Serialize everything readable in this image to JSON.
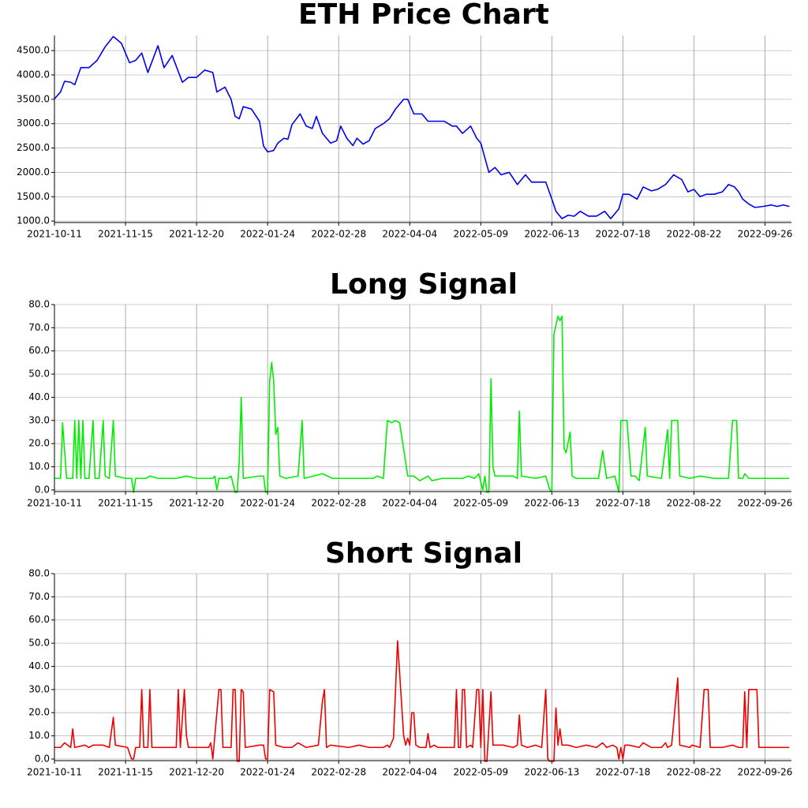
{
  "chart_data": [
    {
      "type": "line",
      "title": "ETH Price Chart",
      "color": "#0000ee",
      "grid": true,
      "xlim": [
        "2021-10-11",
        "2022-10-09"
      ],
      "xticks": [
        "2021-10-11",
        "2021-11-15",
        "2021-12-20",
        "2022-01-24",
        "2022-02-28",
        "2022-04-04",
        "2022-05-09",
        "2022-06-13",
        "2022-07-18",
        "2022-08-22",
        "2022-09-26"
      ],
      "ylim": [
        970,
        4810
      ],
      "yticks": [
        {
          "value": 1000,
          "label": "1000.0"
        },
        {
          "value": 1500,
          "label": "1500.0"
        },
        {
          "value": 2000,
          "label": "2000.0"
        },
        {
          "value": 2500,
          "label": "2500.0"
        },
        {
          "value": 3000,
          "label": "3000.0"
        },
        {
          "value": 3500,
          "label": "3500.0"
        },
        {
          "value": 4000,
          "label": "4000.0"
        },
        {
          "value": 4500,
          "label": "4500.0"
        }
      ],
      "x": [
        "2021-10-11",
        "2021-10-14",
        "2021-10-16",
        "2021-10-19",
        "2021-10-21",
        "2021-10-24",
        "2021-10-28",
        "2021-11-01",
        "2021-11-05",
        "2021-11-09",
        "2021-11-13",
        "2021-11-17",
        "2021-11-20",
        "2021-11-23",
        "2021-11-26",
        "2021-12-01",
        "2021-12-04",
        "2021-12-08",
        "2021-12-13",
        "2021-12-16",
        "2021-12-20",
        "2021-12-24",
        "2021-12-28",
        "2021-12-30",
        "2022-01-03",
        "2022-01-06",
        "2022-01-08",
        "2022-01-10",
        "2022-01-12",
        "2022-01-16",
        "2022-01-20",
        "2022-01-22",
        "2022-01-24",
        "2022-01-27",
        "2022-01-29",
        "2022-02-01",
        "2022-02-03",
        "2022-02-05",
        "2022-02-09",
        "2022-02-12",
        "2022-02-15",
        "2022-02-17",
        "2022-02-20",
        "2022-02-24",
        "2022-02-27",
        "2022-03-01",
        "2022-03-04",
        "2022-03-07",
        "2022-03-09",
        "2022-03-12",
        "2022-03-15",
        "2022-03-18",
        "2022-03-22",
        "2022-03-25",
        "2022-03-28",
        "2022-04-01",
        "2022-04-03",
        "2022-04-06",
        "2022-04-10",
        "2022-04-13",
        "2022-04-17",
        "2022-04-21",
        "2022-04-25",
        "2022-04-27",
        "2022-04-30",
        "2022-05-04",
        "2022-05-07",
        "2022-05-09",
        "2022-05-11",
        "2022-05-13",
        "2022-05-16",
        "2022-05-19",
        "2022-05-23",
        "2022-05-27",
        "2022-05-31",
        "2022-06-03",
        "2022-06-07",
        "2022-06-10",
        "2022-06-13",
        "2022-06-15",
        "2022-06-18",
        "2022-06-21",
        "2022-06-24",
        "2022-06-27",
        "2022-07-01",
        "2022-07-05",
        "2022-07-09",
        "2022-07-12",
        "2022-07-16",
        "2022-07-18",
        "2022-07-21",
        "2022-07-25",
        "2022-07-28",
        "2022-08-01",
        "2022-08-04",
        "2022-08-08",
        "2022-08-12",
        "2022-08-16",
        "2022-08-19",
        "2022-08-22",
        "2022-08-25",
        "2022-08-28",
        "2022-09-01",
        "2022-09-05",
        "2022-09-08",
        "2022-09-11",
        "2022-09-13",
        "2022-09-15",
        "2022-09-18",
        "2022-09-21",
        "2022-09-25",
        "2022-09-29",
        "2022-10-02",
        "2022-10-05",
        "2022-10-08"
      ],
      "values": [
        3510,
        3650,
        3870,
        3850,
        3800,
        4150,
        4150,
        4300,
        4580,
        4790,
        4650,
        4250,
        4300,
        4450,
        4050,
        4600,
        4150,
        4400,
        3850,
        3950,
        3950,
        4100,
        4050,
        3650,
        3750,
        3500,
        3150,
        3100,
        3350,
        3300,
        3050,
        2540,
        2420,
        2450,
        2600,
        2700,
        2680,
        2980,
        3200,
        2950,
        2900,
        3150,
        2800,
        2600,
        2650,
        2950,
        2700,
        2550,
        2700,
        2580,
        2650,
        2900,
        3000,
        3100,
        3300,
        3500,
        3500,
        3200,
        3200,
        3050,
        3050,
        3050,
        2950,
        2950,
        2800,
        2950,
        2700,
        2600,
        2300,
        2000,
        2100,
        1950,
        2000,
        1750,
        1950,
        1800,
        1800,
        1800,
        1450,
        1200,
        1050,
        1120,
        1100,
        1200,
        1100,
        1100,
        1200,
        1050,
        1250,
        1550,
        1550,
        1450,
        1700,
        1620,
        1650,
        1750,
        1950,
        1850,
        1600,
        1650,
        1500,
        1550,
        1550,
        1600,
        1750,
        1700,
        1600,
        1450,
        1350,
        1280,
        1300,
        1330,
        1300,
        1330,
        1300
      ]
    },
    {
      "type": "line",
      "title": "Long Signal",
      "color": "#00ee00",
      "grid": true,
      "xlim": [
        "2021-10-11",
        "2022-10-09"
      ],
      "xticks": [
        "2021-10-11",
        "2021-11-15",
        "2021-12-20",
        "2022-01-24",
        "2022-02-28",
        "2022-04-04",
        "2022-05-09",
        "2022-06-13",
        "2022-07-18",
        "2022-08-22",
        "2022-09-26"
      ],
      "ylim": [
        -0.7,
        80
      ],
      "yticks": [
        {
          "value": 0,
          "label": "0.0"
        },
        {
          "value": 10,
          "label": "10.0"
        },
        {
          "value": 20,
          "label": "20.0"
        },
        {
          "value": 30,
          "label": "30.0"
        },
        {
          "value": 40,
          "label": "40.0"
        },
        {
          "value": 50,
          "label": "50.0"
        },
        {
          "value": 60,
          "label": "60.0"
        },
        {
          "value": 70,
          "label": "70.0"
        },
        {
          "value": 80,
          "label": "80.0"
        }
      ],
      "x": [
        "2021-10-11",
        "2021-10-14",
        "2021-10-15",
        "2021-10-17",
        "2021-10-20",
        "2021-10-21",
        "2021-10-22",
        "2021-10-23",
        "2021-10-24",
        "2021-10-25",
        "2021-10-26",
        "2021-10-28",
        "2021-10-30",
        "2021-10-31",
        "2021-11-02",
        "2021-11-04",
        "2021-11-05",
        "2021-11-07",
        "2021-11-09",
        "2021-11-10",
        "2021-11-15",
        "2021-11-18",
        "2021-11-19",
        "2021-11-20",
        "2021-11-25",
        "2021-11-27",
        "2021-12-01",
        "2021-12-10",
        "2021-12-15",
        "2021-12-20",
        "2021-12-28",
        "2021-12-29",
        "2021-12-30",
        "2021-12-31",
        "2022-01-04",
        "2022-01-06",
        "2022-01-08",
        "2022-01-09",
        "2022-01-10",
        "2022-01-11",
        "2022-01-12",
        "2022-01-20",
        "2022-01-22",
        "2022-01-23",
        "2022-01-24",
        "2022-01-25",
        "2022-01-26",
        "2022-01-27",
        "2022-01-28",
        "2022-01-29",
        "2022-01-30",
        "2022-02-02",
        "2022-02-08",
        "2022-02-10",
        "2022-02-11",
        "2022-02-20",
        "2022-02-25",
        "2022-03-10",
        "2022-03-17",
        "2022-03-19",
        "2022-03-22",
        "2022-03-24",
        "2022-03-26",
        "2022-03-28",
        "2022-03-30",
        "2022-04-02",
        "2022-04-03",
        "2022-04-06",
        "2022-04-09",
        "2022-04-13",
        "2022-04-15",
        "2022-04-20",
        "2022-04-30",
        "2022-05-03",
        "2022-05-06",
        "2022-05-08",
        "2022-05-10",
        "2022-05-11",
        "2022-05-12",
        "2022-05-13",
        "2022-05-14",
        "2022-05-15",
        "2022-05-16",
        "2022-05-25",
        "2022-05-27",
        "2022-05-28",
        "2022-05-29",
        "2022-06-05",
        "2022-06-10",
        "2022-06-12",
        "2022-06-13",
        "2022-06-14",
        "2022-06-16",
        "2022-06-17",
        "2022-06-18",
        "2022-06-19",
        "2022-06-20",
        "2022-06-22",
        "2022-06-23",
        "2022-06-25",
        "2022-07-06",
        "2022-07-08",
        "2022-07-10",
        "2022-07-14",
        "2022-07-16",
        "2022-07-17",
        "2022-07-20",
        "2022-07-22",
        "2022-07-24",
        "2022-07-26",
        "2022-07-29",
        "2022-07-30",
        "2022-08-06",
        "2022-08-09",
        "2022-08-10",
        "2022-08-11",
        "2022-08-14",
        "2022-08-15",
        "2022-08-20",
        "2022-08-25",
        "2022-09-01",
        "2022-09-08",
        "2022-09-10",
        "2022-09-12",
        "2022-09-13",
        "2022-09-15",
        "2022-09-16",
        "2022-09-18",
        "2022-09-25",
        "2022-10-01",
        "2022-10-08"
      ],
      "values": [
        5,
        5,
        29,
        5,
        5,
        30,
        5,
        30,
        5,
        30,
        5,
        5,
        30,
        5,
        5,
        30,
        6,
        5,
        30,
        6,
        5,
        5,
        -1,
        5,
        5,
        6,
        5,
        5,
        6,
        5,
        5,
        6,
        0,
        5,
        5,
        6,
        -1,
        -1,
        12,
        40,
        5,
        6,
        6,
        -1,
        -1,
        47,
        55,
        47,
        24,
        27,
        6,
        5,
        6,
        30,
        5,
        7,
        5,
        5,
        5,
        6,
        5,
        30,
        29,
        30,
        29,
        12,
        6,
        6,
        4,
        6,
        4,
        5,
        5,
        6,
        5,
        7,
        0,
        6,
        -1,
        -1,
        48,
        10,
        6,
        6,
        5,
        34,
        6,
        5,
        6,
        0,
        -1,
        67,
        75,
        73,
        75,
        18,
        16,
        25,
        6,
        5,
        5,
        17,
        5,
        6,
        -1,
        30,
        30,
        6,
        6,
        4,
        27,
        6,
        5,
        26,
        5,
        30,
        30,
        6,
        5,
        6,
        5,
        5,
        30,
        30,
        5,
        5,
        7,
        5,
        5,
        5,
        5
      ]
    },
    {
      "type": "line",
      "title": "Short Signal",
      "color": "#ee0000",
      "grid": true,
      "xlim": [
        "2021-10-11",
        "2022-10-09"
      ],
      "xticks": [
        "2021-10-11",
        "2021-11-15",
        "2021-12-20",
        "2022-01-24",
        "2022-02-28",
        "2022-04-04",
        "2022-05-09",
        "2022-06-13",
        "2022-07-18",
        "2022-08-22",
        "2022-09-26"
      ],
      "ylim": [
        -0.7,
        80
      ],
      "yticks": [
        {
          "value": 0,
          "label": "0.0"
        },
        {
          "value": 10,
          "label": "10.0"
        },
        {
          "value": 20,
          "label": "20.0"
        },
        {
          "value": 30,
          "label": "30.0"
        },
        {
          "value": 40,
          "label": "40.0"
        },
        {
          "value": 50,
          "label": "50.0"
        },
        {
          "value": 60,
          "label": "60.0"
        },
        {
          "value": 70,
          "label": "70.0"
        },
        {
          "value": 80,
          "label": "80.0"
        }
      ],
      "x": [
        "2021-10-11",
        "2021-10-14",
        "2021-10-16",
        "2021-10-19",
        "2021-10-20",
        "2021-10-21",
        "2021-10-26",
        "2021-10-28",
        "2021-10-30",
        "2021-11-04",
        "2021-11-07",
        "2021-11-09",
        "2021-11-10",
        "2021-11-16",
        "2021-11-18",
        "2021-11-19",
        "2021-11-20",
        "2021-11-22",
        "2021-11-23",
        "2021-11-24",
        "2021-11-26",
        "2021-11-27",
        "2021-11-28",
        "2021-12-05",
        "2021-12-10",
        "2021-12-11",
        "2021-12-12",
        "2021-12-14",
        "2021-12-15",
        "2021-12-16",
        "2021-12-26",
        "2021-12-27",
        "2021-12-28",
        "2021-12-31",
        "2022-01-01",
        "2022-01-02",
        "2022-01-06",
        "2022-01-07",
        "2022-01-08",
        "2022-01-09",
        "2022-01-10",
        "2022-01-11",
        "2022-01-12",
        "2022-01-13",
        "2022-01-20",
        "2022-01-22",
        "2022-01-23",
        "2022-01-24",
        "2022-01-25",
        "2022-01-27",
        "2022-01-28",
        "2022-02-01",
        "2022-02-05",
        "2022-02-08",
        "2022-02-12",
        "2022-02-18",
        "2022-02-20",
        "2022-02-21",
        "2022-02-22",
        "2022-02-24",
        "2022-03-05",
        "2022-03-10",
        "2022-03-15",
        "2022-03-20",
        "2022-03-22",
        "2022-03-24",
        "2022-03-25",
        "2022-03-27",
        "2022-03-29",
        "2022-04-01",
        "2022-04-02",
        "2022-04-03",
        "2022-04-04",
        "2022-04-05",
        "2022-04-06",
        "2022-04-07",
        "2022-04-09",
        "2022-04-12",
        "2022-04-13",
        "2022-04-14",
        "2022-04-16",
        "2022-04-18",
        "2022-04-22",
        "2022-04-26",
        "2022-04-27",
        "2022-04-28",
        "2022-04-29",
        "2022-04-30",
        "2022-05-01",
        "2022-05-02",
        "2022-05-04",
        "2022-05-05",
        "2022-05-07",
        "2022-05-08",
        "2022-05-09",
        "2022-05-10",
        "2022-05-11",
        "2022-05-12",
        "2022-05-14",
        "2022-05-15",
        "2022-05-20",
        "2022-05-25",
        "2022-05-27",
        "2022-05-28",
        "2022-05-29",
        "2022-06-01",
        "2022-06-05",
        "2022-06-08",
        "2022-06-10",
        "2022-06-11",
        "2022-06-12",
        "2022-06-14",
        "2022-06-15",
        "2022-06-16",
        "2022-06-17",
        "2022-06-18",
        "2022-06-21",
        "2022-06-25",
        "2022-06-30",
        "2022-07-05",
        "2022-07-08",
        "2022-07-10",
        "2022-07-13",
        "2022-07-15",
        "2022-07-16",
        "2022-07-17",
        "2022-07-18",
        "2022-07-19",
        "2022-07-21",
        "2022-07-26",
        "2022-07-28",
        "2022-08-01",
        "2022-08-06",
        "2022-08-08",
        "2022-08-09",
        "2022-08-11",
        "2022-08-14",
        "2022-08-15",
        "2022-08-20",
        "2022-08-21",
        "2022-08-25",
        "2022-08-27",
        "2022-08-28",
        "2022-08-29",
        "2022-08-30",
        "2022-09-05",
        "2022-09-10",
        "2022-09-13",
        "2022-09-15",
        "2022-09-16",
        "2022-09-17",
        "2022-09-18",
        "2022-09-22",
        "2022-09-23",
        "2022-09-28",
        "2022-10-01",
        "2022-10-08"
      ],
      "values": [
        5,
        5,
        7,
        5,
        13,
        5,
        6,
        5,
        6,
        6,
        5,
        18,
        6,
        5,
        0,
        0,
        5,
        5,
        30,
        5,
        5,
        30,
        5,
        5,
        5,
        30,
        5,
        30,
        10,
        5,
        5,
        7,
        0,
        30,
        30,
        5,
        5,
        30,
        30,
        -1,
        -1,
        30,
        29,
        5,
        6,
        6,
        0,
        0,
        30,
        29,
        6,
        5,
        5,
        7,
        5,
        6,
        25,
        30,
        5,
        6,
        5,
        6,
        5,
        5,
        5,
        6,
        5,
        9,
        51,
        10,
        6,
        9,
        6,
        20,
        20,
        6,
        5,
        5,
        11,
        5,
        6,
        5,
        5,
        5,
        30,
        5,
        5,
        30,
        30,
        5,
        6,
        5,
        30,
        30,
        5,
        30,
        -1,
        -1,
        29,
        6,
        6,
        5,
        6,
        19,
        6,
        5,
        6,
        5,
        30,
        0,
        -1,
        -1,
        22,
        6,
        13,
        6,
        6,
        5,
        6,
        5,
        7,
        5,
        6,
        5,
        0,
        5,
        0,
        6,
        6,
        5,
        7,
        5,
        5,
        7,
        5,
        6,
        35,
        6,
        5,
        6,
        5,
        30,
        30,
        30,
        5,
        5,
        6,
        5,
        5,
        29,
        5,
        30,
        30,
        5,
        5,
        5,
        5
      ]
    }
  ]
}
